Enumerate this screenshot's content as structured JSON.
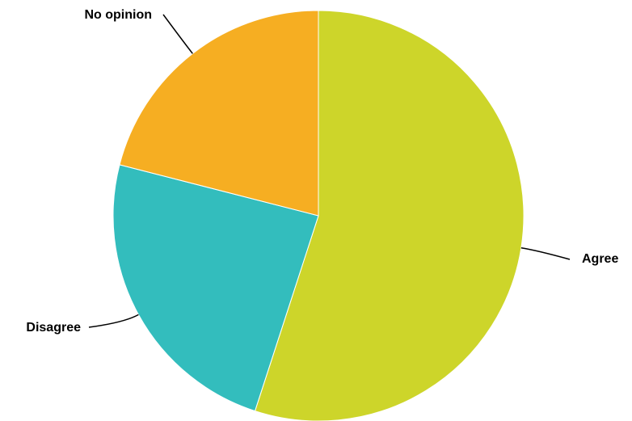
{
  "chart_data": {
    "type": "pie",
    "title": "",
    "slices": [
      {
        "label": "Agree",
        "value": 55,
        "color": "#CDD52A"
      },
      {
        "label": "Disagree",
        "value": 24,
        "color": "#33BDBD"
      },
      {
        "label": "No opinion",
        "value": 21,
        "color": "#F6AE22"
      }
    ]
  }
}
